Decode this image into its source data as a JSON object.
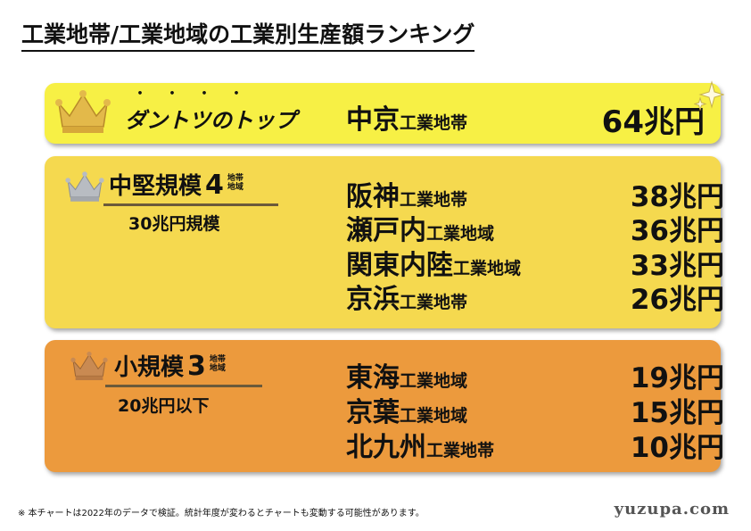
{
  "title": "工業地帯/工業地域の工業別生産額ランキング",
  "top": {
    "emphasis_dots": "・・・・",
    "tagline": "ダントツのトップ",
    "region_name": "中京",
    "region_suffix": "工業地帯",
    "amount": "64兆円",
    "crown_icon": "gold-crown-icon"
  },
  "mid": {
    "label": "中堅規模",
    "count": "4",
    "count_unit_line1": "地帯",
    "count_unit_line2": "地域",
    "subtitle": "30兆円規模",
    "crown_icon": "silver-crown-icon",
    "rows": [
      {
        "name": "阪神",
        "suffix": "工業地帯",
        "amount": "38兆円"
      },
      {
        "name": "瀬戸内",
        "suffix": "工業地域",
        "amount": "36兆円"
      },
      {
        "name": "関東内陸",
        "suffix": "工業地域",
        "amount": "33兆円"
      },
      {
        "name": "京浜",
        "suffix": "工業地帯",
        "amount": "26兆円"
      }
    ]
  },
  "low": {
    "label": "小規模",
    "count": "3",
    "count_unit_line1": "地帯",
    "count_unit_line2": "地域",
    "subtitle": "20兆円以下",
    "crown_icon": "bronze-crown-icon",
    "rows": [
      {
        "name": "東海",
        "suffix": "工業地域",
        "amount": "19兆円"
      },
      {
        "name": "京葉",
        "suffix": "工業地域",
        "amount": "15兆円"
      },
      {
        "name": "北九州",
        "suffix": "工業地帯",
        "amount": "10兆円"
      }
    ]
  },
  "footnote": "※ 本チャートは2022年のデータで検証。統計年度が変わるとチャートも変動する可能性があります。",
  "brand": "yuzupa.com",
  "colors": {
    "top_panel": "#f7f045",
    "mid_panel": "#f5d94f",
    "low_panel": "#ec9a3d",
    "gold": "#e3b94a",
    "silver": "#b8bcc2",
    "bronze": "#c98a52"
  }
}
